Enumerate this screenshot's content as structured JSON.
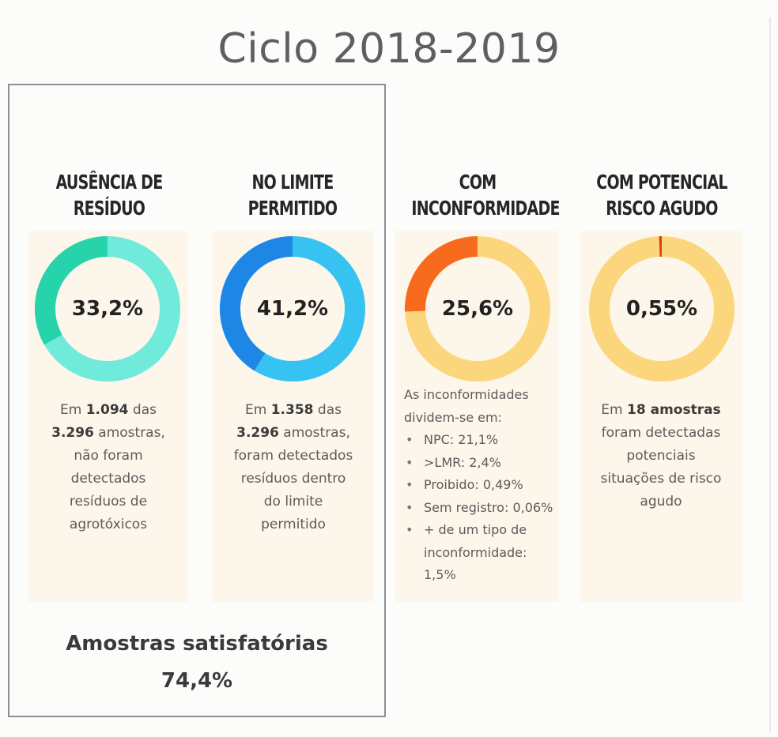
{
  "title": "Ciclo 2018-2019",
  "chart_data": [
    {
      "type": "pie",
      "title": "AUSÊNCIA DE RESÍDUO",
      "value_label": "33,2%",
      "value": 33.2,
      "unit": "%",
      "colors": {
        "highlight": "#26d3aa",
        "base": "#6feadb"
      }
    },
    {
      "type": "pie",
      "title": "NO LIMITE PERMITIDO",
      "value_label": "41,2%",
      "value": 41.2,
      "unit": "%",
      "colors": {
        "highlight": "#1e87e6",
        "base": "#37c3f2"
      }
    },
    {
      "type": "pie",
      "title": "COM INCONFORMIDADE",
      "value_label": "25,6%",
      "value": 25.6,
      "unit": "%",
      "colors": {
        "highlight": "#f86a1e",
        "base": "#fcd67c"
      }
    },
    {
      "type": "pie",
      "title": "COM POTENCIAL RISCO AGUDO",
      "value_label": "0,55%",
      "value": 0.55,
      "unit": "%",
      "colors": {
        "highlight": "#d9401a",
        "base": "#fcd67c"
      }
    }
  ],
  "columns": [
    {
      "heading_line1": "AUSÊNCIA DE",
      "heading_line2": "RESÍDUO",
      "desc": [
        [
          {
            "t": "Em ",
            "b": false
          },
          {
            "t": "1.094",
            "b": true
          },
          {
            "t": " das",
            "b": false
          }
        ],
        [
          {
            "t": "3.296",
            "b": true
          },
          {
            "t": " amostras,",
            "b": false
          }
        ],
        [
          {
            "t": "não foram",
            "b": false
          }
        ],
        [
          {
            "t": "detectados",
            "b": false
          }
        ],
        [
          {
            "t": "resíduos de",
            "b": false
          }
        ],
        [
          {
            "t": "agrotóxicos",
            "b": false
          }
        ]
      ]
    },
    {
      "heading_line1": "NO LIMITE",
      "heading_line2": "PERMITIDO",
      "desc": [
        [
          {
            "t": "Em ",
            "b": false
          },
          {
            "t": "1.358",
            "b": true
          },
          {
            "t": " das",
            "b": false
          }
        ],
        [
          {
            "t": "3.296",
            "b": true
          },
          {
            "t": " amostras,",
            "b": false
          }
        ],
        [
          {
            "t": "foram detectados",
            "b": false
          }
        ],
        [
          {
            "t": "resíduos dentro",
            "b": false
          }
        ],
        [
          {
            "t": "do limite",
            "b": false
          }
        ],
        [
          {
            "t": "permitido",
            "b": false
          }
        ]
      ]
    },
    {
      "heading_line1": "COM",
      "heading_line2": "INCONFORMIDADE",
      "intro": "As inconformidades dividem-se em:",
      "items": [
        "NPC: 21,1%",
        ">LMR: 2,4%",
        "Proibido: 0,49%",
        "Sem registro: 0,06%",
        "+ de um tipo de inconformidade: 1,5%"
      ]
    },
    {
      "heading_line1": "COM POTENCIAL",
      "heading_line2": "RISCO AGUDO",
      "desc": [
        [
          {
            "t": "Em ",
            "b": false
          },
          {
            "t": "18 amostras",
            "b": true
          }
        ],
        [
          {
            "t": "foram detectadas",
            "b": false
          }
        ],
        [
          {
            "t": "potenciais",
            "b": false
          }
        ],
        [
          {
            "t": "situações de risco",
            "b": false
          }
        ],
        [
          {
            "t": "agudo",
            "b": false
          }
        ]
      ]
    }
  ],
  "satisfactory": {
    "label": "Amostras satisfatórias",
    "value": "74,4%"
  }
}
